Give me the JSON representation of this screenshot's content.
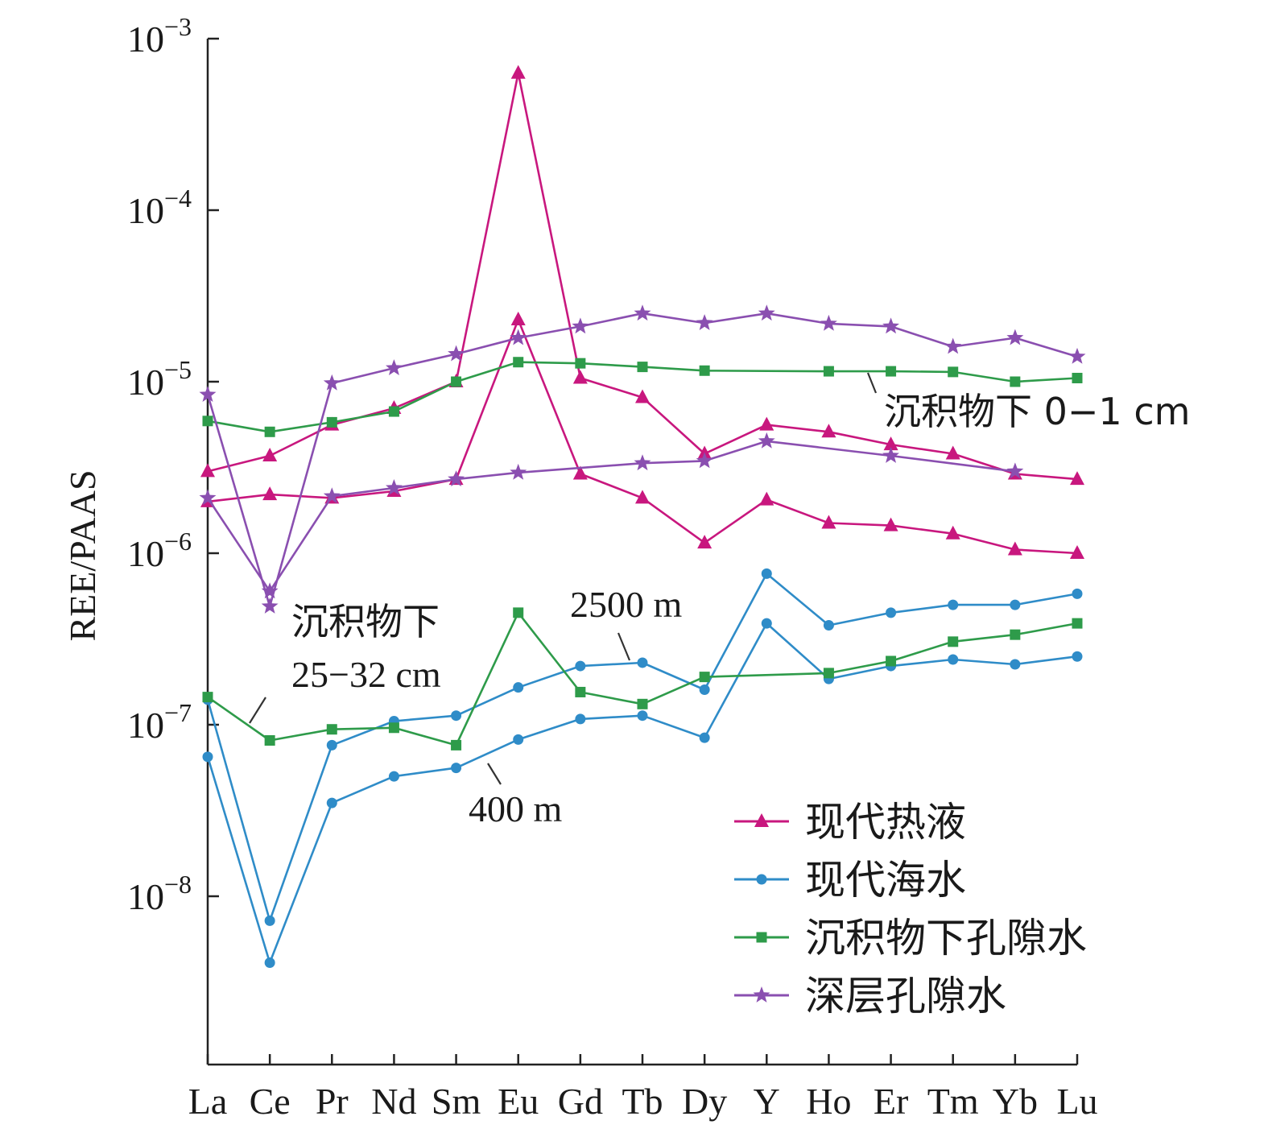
{
  "chart_data": {
    "type": "line",
    "title": "",
    "xlabel": "",
    "ylabel": "REE/PAAS",
    "yscale": "log",
    "ylim": [
      1e-09,
      0.001
    ],
    "y_ticks": [
      {
        "value": 0.001,
        "base": "10",
        "exp": "−3"
      },
      {
        "value": 0.0001,
        "base": "10",
        "exp": "−4"
      },
      {
        "value": 1e-05,
        "base": "10",
        "exp": "−5"
      },
      {
        "value": 1e-06,
        "base": "10",
        "exp": "−6"
      },
      {
        "value": 1e-07,
        "base": "10",
        "exp": "−7"
      },
      {
        "value": 1e-08,
        "base": "10",
        "exp": "−8"
      }
    ],
    "categories": [
      "La",
      "Ce",
      "Pr",
      "Nd",
      "Sm",
      "Eu",
      "Gd",
      "Tb",
      "Dy",
      "Y",
      "Ho",
      "Er",
      "Tm",
      "Yb",
      "Lu"
    ],
    "grid": false,
    "legend_position": "bottom-right",
    "legend": [
      {
        "label": "现代热液",
        "color": "#c8177e",
        "marker": "triangle"
      },
      {
        "label": "现代海水",
        "color": "#2f8cc8",
        "marker": "circle"
      },
      {
        "label": "沉积物下孔隙水",
        "color": "#2e9b4a",
        "marker": "square"
      },
      {
        "label": "深层孔隙水",
        "color": "#8a4fb0",
        "marker": "star"
      }
    ],
    "series": [
      {
        "color": "#c8177e",
        "marker": "triangle",
        "values": [
          3e-06,
          3.7e-06,
          5.6e-06,
          7e-06,
          1e-05,
          0.00063,
          1.05e-05,
          8.1e-06,
          3.8e-06,
          5.6e-06,
          5.1e-06,
          4.3e-06,
          3.8e-06,
          2.9e-06,
          2.7e-06
        ]
      },
      {
        "color": "#c8177e",
        "marker": "triangle",
        "values": [
          2e-06,
          2.2e-06,
          2.1e-06,
          2.3e-06,
          2.7e-06,
          2.3e-05,
          2.9e-06,
          2.1e-06,
          1.15e-06,
          2.05e-06,
          1.5e-06,
          1.45e-06,
          1.3e-06,
          1.05e-06,
          1e-06
        ]
      },
      {
        "color": "#2f8cc8",
        "marker": "circle",
        "values": [
          1.4e-07,
          7.2e-09,
          7.6e-08,
          1.05e-07,
          1.13e-07,
          1.65e-07,
          2.2e-07,
          2.3e-07,
          1.6e-07,
          7.6e-07,
          3.8e-07,
          4.5e-07,
          5e-07,
          5e-07,
          5.8e-07
        ]
      },
      {
        "color": "#2f8cc8",
        "marker": "circle",
        "values": [
          6.5e-08,
          4.1e-09,
          3.5e-08,
          5e-08,
          5.6e-08,
          8.2e-08,
          1.08e-07,
          1.13e-07,
          8.4e-08,
          3.9e-07,
          1.85e-07,
          2.2e-07,
          2.4e-07,
          2.25e-07,
          2.5e-07
        ]
      },
      {
        "color": "#2e9b4a",
        "marker": "square",
        "values": [
          5.9e-06,
          5.1e-06,
          5.8e-06,
          6.7e-06,
          1e-05,
          1.3e-05,
          1.28e-05,
          1.22e-05,
          1.16e-05,
          null,
          1.15e-05,
          1.15e-05,
          1.14e-05,
          1e-05,
          1.05e-05
        ]
      },
      {
        "color": "#2e9b4a",
        "marker": "square",
        "values": [
          1.45e-07,
          8.1e-08,
          9.4e-08,
          9.6e-08,
          7.6e-08,
          4.5e-07,
          1.55e-07,
          1.32e-07,
          1.9e-07,
          null,
          2e-07,
          2.35e-07,
          3.05e-07,
          3.35e-07,
          3.9e-07
        ]
      },
      {
        "color": "#8a4fb0",
        "marker": "star",
        "values": [
          8.4e-06,
          4.9e-07,
          9.8e-06,
          1.2e-05,
          1.45e-05,
          1.8e-05,
          2.1e-05,
          2.5e-05,
          2.2e-05,
          2.5e-05,
          2.18e-05,
          2.1e-05,
          1.6e-05,
          1.8e-05,
          1.4e-05
        ]
      },
      {
        "color": "#8a4fb0",
        "marker": "star",
        "values": [
          2.1e-06,
          6e-07,
          2.15e-06,
          2.4e-06,
          2.7e-06,
          2.95e-06,
          null,
          3.35e-06,
          3.45e-06,
          4.5e-06,
          null,
          3.7e-06,
          null,
          3e-06,
          null
        ]
      }
    ],
    "annotations": [
      {
        "id": "surface",
        "text": "沉积物下 0−1 cm"
      },
      {
        "id": "deep1",
        "text": "沉积物下"
      },
      {
        "id": "deep2",
        "text": "25−32 cm"
      },
      {
        "id": "d2500",
        "text": "2500 m"
      },
      {
        "id": "d400",
        "text": "400 m"
      }
    ]
  }
}
